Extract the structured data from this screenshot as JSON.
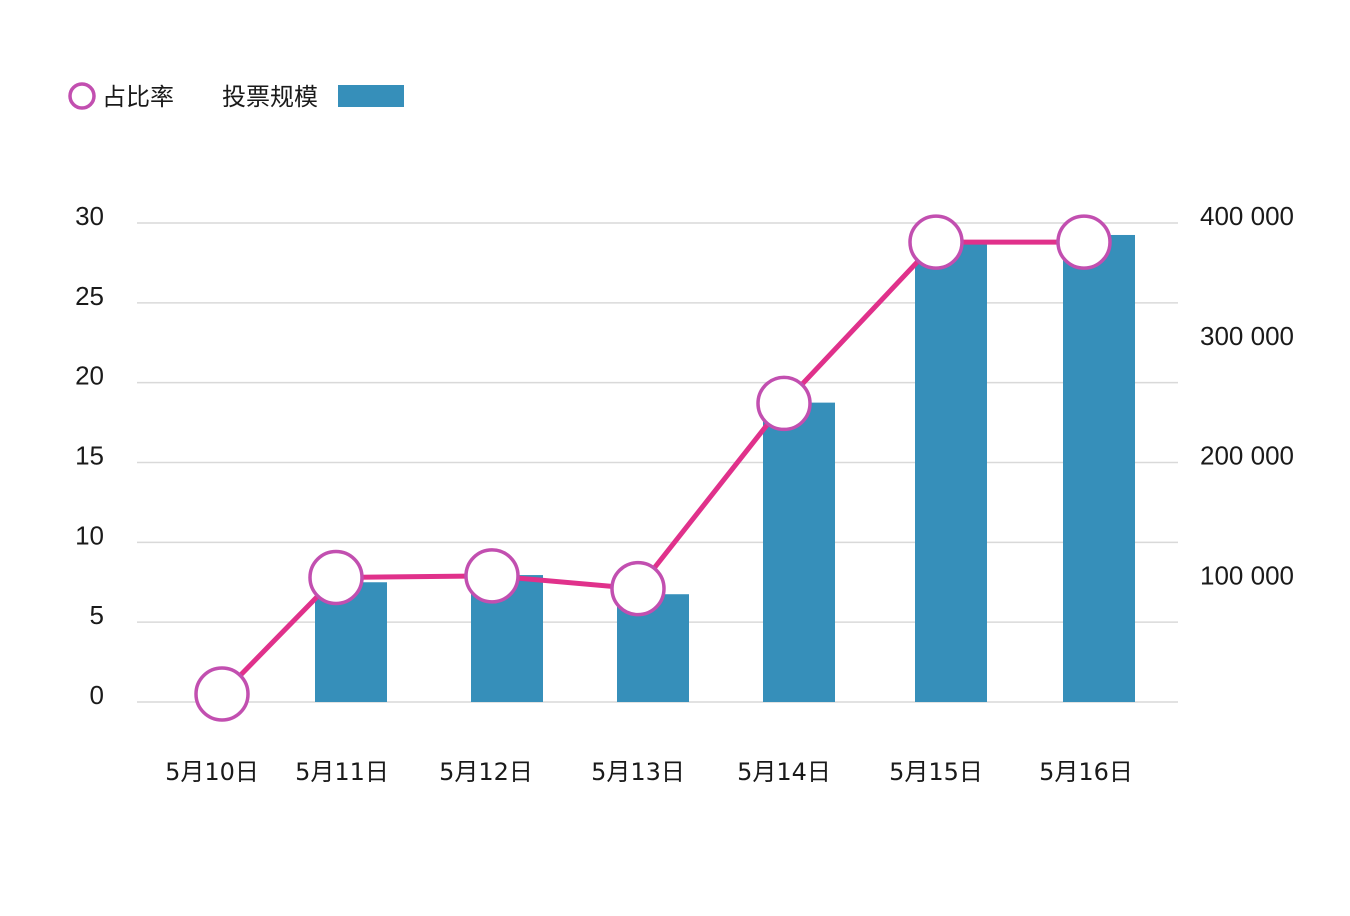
{
  "chart_data": {
    "type": "bar",
    "categories": [
      "5月10日",
      "5月11日",
      "5月12日",
      "5月13日",
      "5月14日",
      "5月15日",
      "5月16日"
    ],
    "series": [
      {
        "name": "投票规模",
        "type": "bar",
        "axis": "right",
        "values": [
          0,
          100000,
          106000,
          90000,
          250000,
          385000,
          390000
        ]
      },
      {
        "name": "占比率",
        "type": "line",
        "axis": "left",
        "values": [
          0.5,
          7.8,
          7.9,
          7.1,
          18.7,
          28.8,
          28.8
        ]
      }
    ],
    "left_axis": {
      "ticks": [
        {
          "value": 0,
          "label": "0"
        },
        {
          "value": 5,
          "label": "5"
        },
        {
          "value": 10,
          "label": "10"
        },
        {
          "value": 15,
          "label": "15"
        },
        {
          "value": 20,
          "label": "20"
        },
        {
          "value": 25,
          "label": "25"
        },
        {
          "value": 30,
          "label": "30"
        }
      ],
      "ylim": [
        0,
        30
      ]
    },
    "right_axis": {
      "ticks": [
        {
          "value": 100000,
          "label": "100 000"
        },
        {
          "value": 200000,
          "label": "200 000"
        },
        {
          "value": 300000,
          "label": "300 000"
        },
        {
          "value": 400000,
          "label": "400 000"
        }
      ],
      "ylim": [
        0,
        400000
      ]
    },
    "grid": true,
    "legend_position": "top-left",
    "colors": {
      "bar": "#368fba",
      "line": "#e0318b",
      "marker_stroke": "#c24fb0",
      "marker_fill": "#ffffff",
      "grid": "#d9d9d9"
    }
  }
}
